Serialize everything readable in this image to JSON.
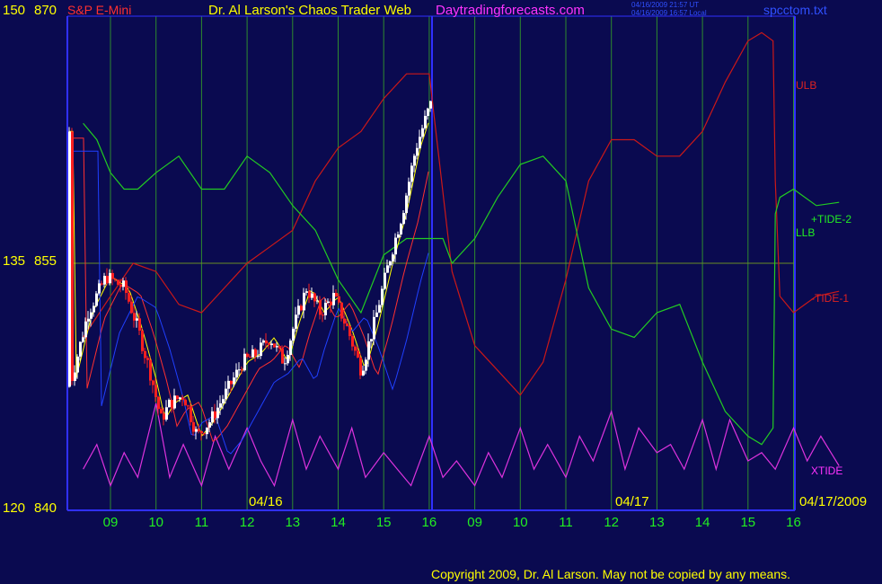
{
  "header": {
    "instrument": "S&P E-Mini",
    "site_title": "Dr. Al Larson's Chaos Trader Web",
    "site_url": "Daytradingforecasts.com",
    "timestamp_line1": "04/16/2009 21:57 UT",
    "timestamp_line2": "04/16/2009 16:57 Local",
    "filename": "spcctom.txt",
    "left_scale_top_a": "150",
    "left_scale_top_b": "870",
    "left_scale_mid_a": "135",
    "left_scale_mid_b": "855",
    "left_scale_bot_a": "120",
    "left_scale_bot_b": "840"
  },
  "footer": {
    "copyright": "Copyright 2009, Dr. Al Larson. May not be copied by any means."
  },
  "colors": {
    "background": "#0a0a50",
    "grid_vertical": "#2e8b2e",
    "grid_horizontal": "#6b8e23",
    "axis": "#3030ff",
    "ulb": "#cc1818",
    "llb": "#22cc22",
    "xtide": "#dd33dd",
    "price_up": "#ffffff",
    "price_down": "#ff2020",
    "ma_blue": "#2040ff",
    "ma_yellow": "#ffff00",
    "ma_red": "#ff3030"
  },
  "chart_data": {
    "type": "line",
    "title": "S&P E-Mini",
    "x_tick_labels": [
      "09",
      "10",
      "11",
      "12",
      "13",
      "14",
      "15",
      "16",
      "09",
      "10",
      "11",
      "12",
      "13",
      "14",
      "15",
      "16"
    ],
    "date_labels": [
      "04/16",
      "04/17",
      "04/17/2009"
    ],
    "ylim_price": [
      840,
      870
    ],
    "ylim_index": [
      120,
      150
    ],
    "y_tick_labels": [
      "870",
      "855",
      "840"
    ],
    "series_labels": {
      "ulb": "ULB",
      "llb": "LLB",
      "tide_plus": "+TIDE-2",
      "tide_minus": "-TIDE-1",
      "xtide": "XTIDE"
    },
    "series": [
      {
        "name": "ULB",
        "x": [
          -0.6,
          0,
          0.5,
          1.0,
          1.5,
          2.0,
          2.5,
          3.0,
          3.5,
          4.0,
          4.5,
          5.0,
          5.5,
          6.0,
          6.5,
          7.0,
          7.5,
          8.0,
          8.5,
          9.0,
          9.5,
          10.0,
          10.5,
          11.0,
          11.5,
          12.0,
          12.5,
          13.0,
          13.5,
          14.0,
          14.3,
          14.55,
          14.6,
          14.7,
          15.0,
          15.5,
          16.0
        ],
        "y": [
          850.5,
          853,
          855,
          854.5,
          852.5,
          852,
          853.5,
          855,
          856,
          857,
          860,
          862,
          863,
          865,
          866.5,
          866.5,
          854.5,
          850,
          848.5,
          847,
          849,
          854,
          860,
          862.5,
          862.5,
          861.5,
          861.5,
          863,
          866,
          868.5,
          869,
          868.5,
          860,
          853,
          852,
          853,
          853.3
        ]
      },
      {
        "name": "LLB",
        "x": [
          -0.6,
          -0.3,
          0,
          0.3,
          0.6,
          1.0,
          1.5,
          2.0,
          2.5,
          3.0,
          3.5,
          4.0,
          4.5,
          5.0,
          5.5,
          6.0,
          6.5,
          7.0,
          7.3,
          7.5,
          8.0,
          8.5,
          9.0,
          9.5,
          10.0,
          10.5,
          11.0,
          11.5,
          12.0,
          12.5,
          13.0,
          13.5,
          14.0,
          14.3,
          14.55,
          14.6,
          14.7,
          15.0,
          15.5,
          16.0
        ],
        "y": [
          863.5,
          862.5,
          860.5,
          859.5,
          859.5,
          860.5,
          861.5,
          859.5,
          859.5,
          861.5,
          860.5,
          858.5,
          857,
          854,
          852,
          855.5,
          856.5,
          856.5,
          856.5,
          855,
          856.5,
          859,
          861,
          861.5,
          860,
          853.5,
          851,
          850.5,
          852,
          852.5,
          849,
          846,
          844.5,
          844,
          845,
          858,
          859,
          859.5,
          858.5,
          858.7
        ]
      },
      {
        "name": "XTIDE",
        "x": [
          -0.6,
          -0.3,
          0,
          0.3,
          0.6,
          1.0,
          1.3,
          1.6,
          2.0,
          2.3,
          2.6,
          3.0,
          3.3,
          3.6,
          4.0,
          4.3,
          4.6,
          5.0,
          5.3,
          5.6,
          6.0,
          6.3,
          6.6,
          7.0,
          7.3,
          7.6,
          8.0,
          8.3,
          8.6,
          9.0,
          9.3,
          9.6,
          10.0,
          10.3,
          10.6,
          11.0,
          11.3,
          11.6,
          12.0,
          12.3,
          12.6,
          13.0,
          13.3,
          13.6,
          14.0,
          14.3,
          14.6,
          15.0,
          15.3,
          15.6,
          16.0
        ],
        "y": [
          842.5,
          844,
          841.5,
          843.5,
          842,
          846.5,
          842,
          844,
          841.5,
          844.5,
          842.5,
          845,
          843,
          841.5,
          845.5,
          842.5,
          844.5,
          842.5,
          845,
          842,
          843.5,
          842.5,
          841.5,
          844.5,
          842,
          843,
          841.5,
          843.5,
          842,
          845,
          842.5,
          844,
          842,
          844.5,
          843,
          846,
          842.5,
          845,
          843.5,
          844,
          842.5,
          845.5,
          842.5,
          845.5,
          843,
          843.5,
          842.5,
          845,
          843,
          844.5,
          842.7
        ]
      }
    ]
  }
}
